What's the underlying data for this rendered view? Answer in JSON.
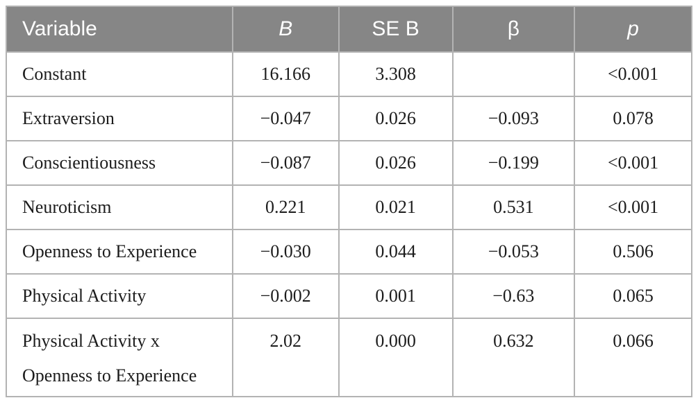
{
  "table": {
    "columns": [
      {
        "label": "Variable"
      },
      {
        "label": "B"
      },
      {
        "label": "SE B"
      },
      {
        "label": "β"
      },
      {
        "label": "p"
      }
    ],
    "rows": [
      {
        "variable": "Constant",
        "b": "16.166",
        "se_b": "3.308",
        "beta": "",
        "p": "<0.001"
      },
      {
        "variable": "Extraversion",
        "b": "−0.047",
        "se_b": "0.026",
        "beta": "−0.093",
        "p": "0.078"
      },
      {
        "variable": "Conscientiousness",
        "b": "−0.087",
        "se_b": "0.026",
        "beta": "−0.199",
        "p": "<0.001"
      },
      {
        "variable": "Neuroticism",
        "b": "0.221",
        "se_b": "0.021",
        "beta": "0.531",
        "p": "<0.001"
      },
      {
        "variable": "Openness to Experience",
        "b": "−0.030",
        "se_b": "0.044",
        "beta": "−0.053",
        "p": "0.506"
      },
      {
        "variable": "Physical Activity",
        "b": "−0.002",
        "se_b": "0.001",
        "beta": "−0.63",
        "p": "0.065"
      },
      {
        "variable": "Physical Activity x\nOpenness to Experience",
        "b": "2.02",
        "se_b": "0.000",
        "beta": "0.632",
        "p": "0.066",
        "two_line": true
      }
    ],
    "colors": {
      "header_bg": "#868686",
      "header_text": "#ffffff",
      "border": "#b3b3b3",
      "body_text": "#1c1c1c",
      "page_bg": "#ffffff"
    }
  }
}
